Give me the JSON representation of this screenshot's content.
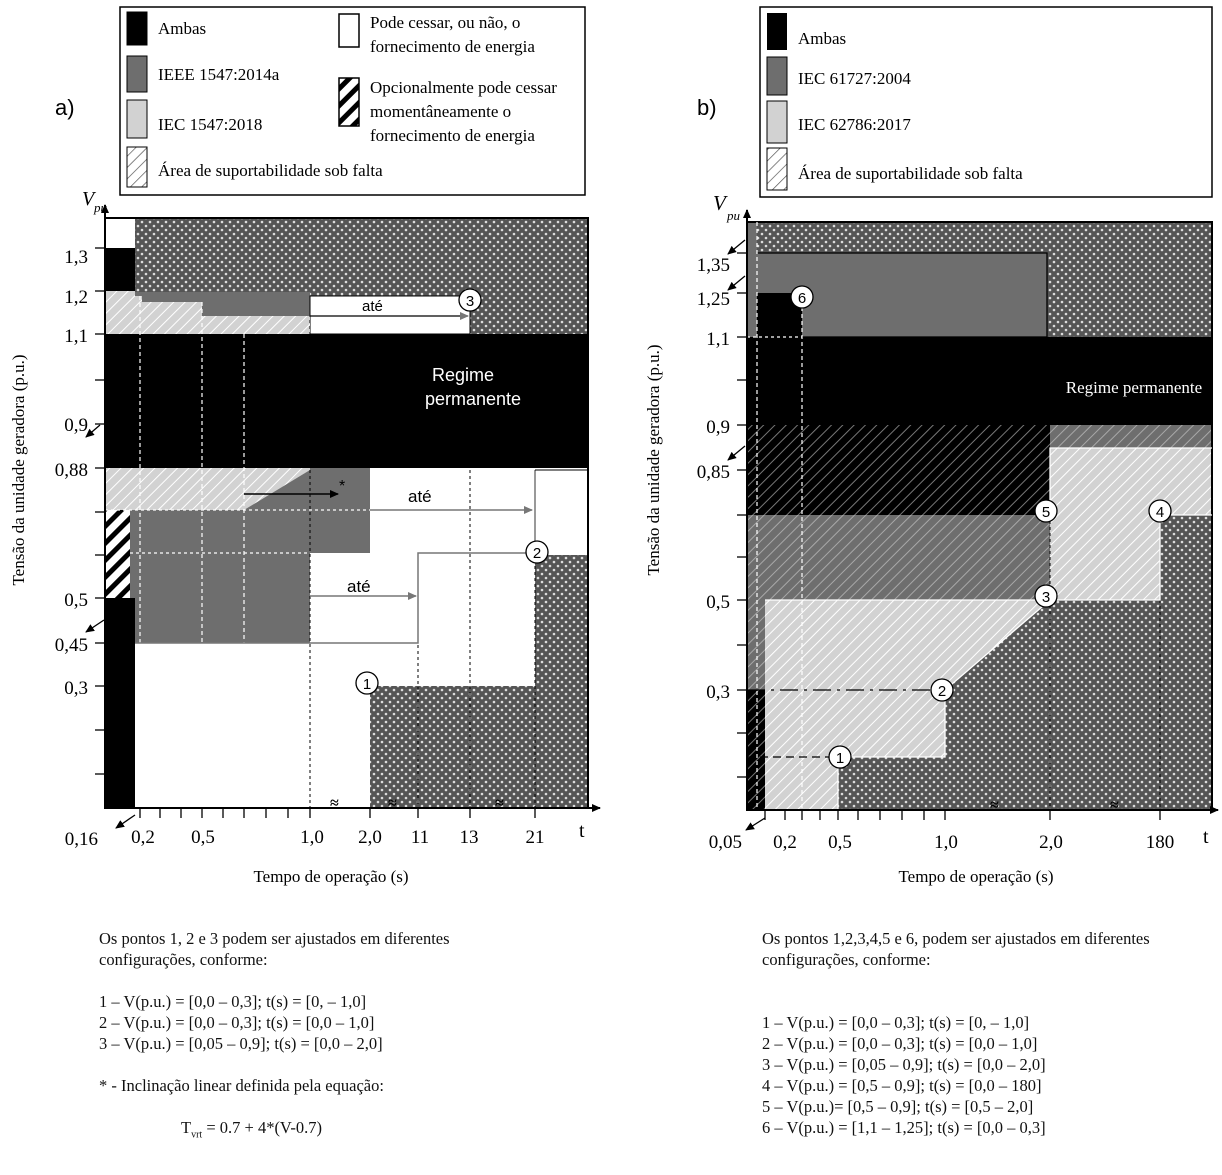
{
  "panel_a": {
    "label": "a)",
    "legend": {
      "both": "Ambas",
      "ieee_2014": "IEEE 1547:2014a",
      "iec_2018": "IEC 1547:2018",
      "fault_area": "Área de suportabilidade sob falta",
      "may_cease_1": "Pode cessar, ou não, o",
      "may_cease_2": "fornecimento de energia",
      "optional_1": "Opcionalmente pode cessar",
      "optional_2": "momentâneamente o",
      "optional_3": "fornecimento de energia"
    },
    "y_axis_title": "Tensão da unidade geradora (p.u.)",
    "y_axis_symbol": "V",
    "y_axis_symbol_sub": "pu",
    "x_axis_title": "Tempo de operação (s)",
    "x_axis_symbol": "t",
    "y_ticks": [
      "1,3",
      "1,2",
      "1,1",
      "0,9",
      "0,88",
      "0,5",
      "0,45",
      "0,3",
      "0,16"
    ],
    "x_ticks": [
      "0,2",
      "0,5",
      "1,0",
      "2,0",
      "11",
      "13",
      "21"
    ],
    "regime_1": "Regime",
    "regime_2": "permanente",
    "ate_1": "até",
    "ate_2": "até",
    "ate_3": "até",
    "asterisk": "*",
    "points": [
      "1",
      "2",
      "3"
    ],
    "notes": {
      "intro_1": "Os pontos 1, 2 e 3 podem ser ajustados em diferentes",
      "intro_2": "configurações, conforme:",
      "p1": "1 – V(p.u.) = [0,0 – 0,3]; t(s) = [0, – 1,0]",
      "p2": "2 – V(p.u.) = [0,0 – 0,3]; t(s) = [0,0 – 1,0]",
      "p3": "3 – V(p.u.) = [0,05 – 0,9]; t(s) = [0,0 – 2,0]",
      "star": "* - Inclinação linear definida pela equação:",
      "eq_t": "T",
      "eq_sub": "vrt",
      "eq_rest": " = 0.7 + 4*(V-0.7)"
    }
  },
  "panel_b": {
    "label": "b)",
    "legend": {
      "both": "Ambas",
      "iec_61727": "IEC 61727:2004",
      "iec_62786": "IEC 62786:2017",
      "fault_area": "Área de suportabilidade sob falta"
    },
    "y_axis_title": "Tensão da unidade geradora (p.u.)",
    "y_axis_symbol": "V",
    "y_axis_symbol_sub": "pu",
    "x_axis_title": "Tempo de operação (s)",
    "x_axis_symbol": "t",
    "y_ticks": [
      "1,35",
      "1,25",
      "1,1",
      "0,9",
      "0,85",
      "0,5",
      "0,3",
      "0,05"
    ],
    "x_ticks": [
      "0,2",
      "0,5",
      "1,0",
      "2,0",
      "180"
    ],
    "regime": "Regime permanente",
    "points": [
      "1",
      "2",
      "3",
      "4",
      "5",
      "6"
    ],
    "notes": {
      "intro_1": "Os pontos 1,2,3,4,5 e 6, podem ser ajustados em diferentes",
      "intro_2": "configurações, conforme:",
      "p1": "1 – V(p.u.) = [0,0 – 0,3]; t(s) = [0, – 1,0]",
      "p2": "2 – V(p.u.) = [0,0 – 0,3]; t(s) = [0,0 – 1,0]",
      "p3": "3 – V(p.u.) = [0,05 – 0,9]; t(s) = [0,0 – 2,0]",
      "p4": "4 – V(p.u.) = [0,5 – 0,9]; t(s) = [0,0 – 180]",
      "p5": "5 – V(p.u.)= [0,5 – 0,9]; t(s) = [0,5 – 2,0]",
      "p6": "6 – V(p.u.) = [1,1 – 1,25]; t(s) = [0,0 – 0,3]"
    }
  },
  "colors": {
    "both": "#000000",
    "dark_gray": "#6e6e6e",
    "light_gray": "#d2d2d2",
    "dotted_bg": "#555555",
    "white": "#ffffff"
  }
}
